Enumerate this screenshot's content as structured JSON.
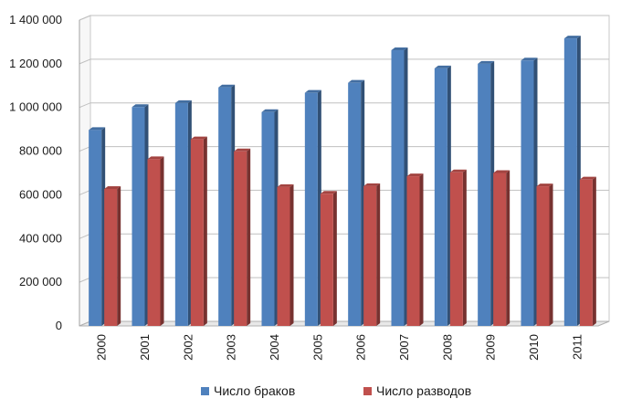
{
  "chart_data": {
    "type": "bar",
    "title": "",
    "xlabel": "",
    "ylabel": "",
    "categories": [
      "2000",
      "2001",
      "2002",
      "2003",
      "2004",
      "2005",
      "2006",
      "2007",
      "2008",
      "2009",
      "2010",
      "2011"
    ],
    "series": [
      {
        "name": "Число браков",
        "color": "#4F81BD",
        "values": [
          897000,
          1002000,
          1020000,
          1092000,
          979000,
          1067000,
          1113000,
          1262000,
          1179000,
          1200000,
          1215000,
          1316000
        ]
      },
      {
        "name": "Число разводов",
        "color": "#C0504D",
        "values": [
          627000,
          763000,
          854000,
          799000,
          636000,
          605000,
          640000,
          685000,
          703000,
          700000,
          639000,
          670000
        ]
      }
    ],
    "ylim": [
      0,
      1400000
    ],
    "yticks": [
      0,
      200000,
      400000,
      600000,
      800000,
      1000000,
      1200000,
      1400000
    ],
    "ytick_labels": [
      "0",
      "200 000",
      "400 000",
      "600 000",
      "800 000",
      "1 000 000",
      "1 200 000",
      "1 400 000"
    ],
    "grid": true,
    "legend_position": "bottom"
  }
}
